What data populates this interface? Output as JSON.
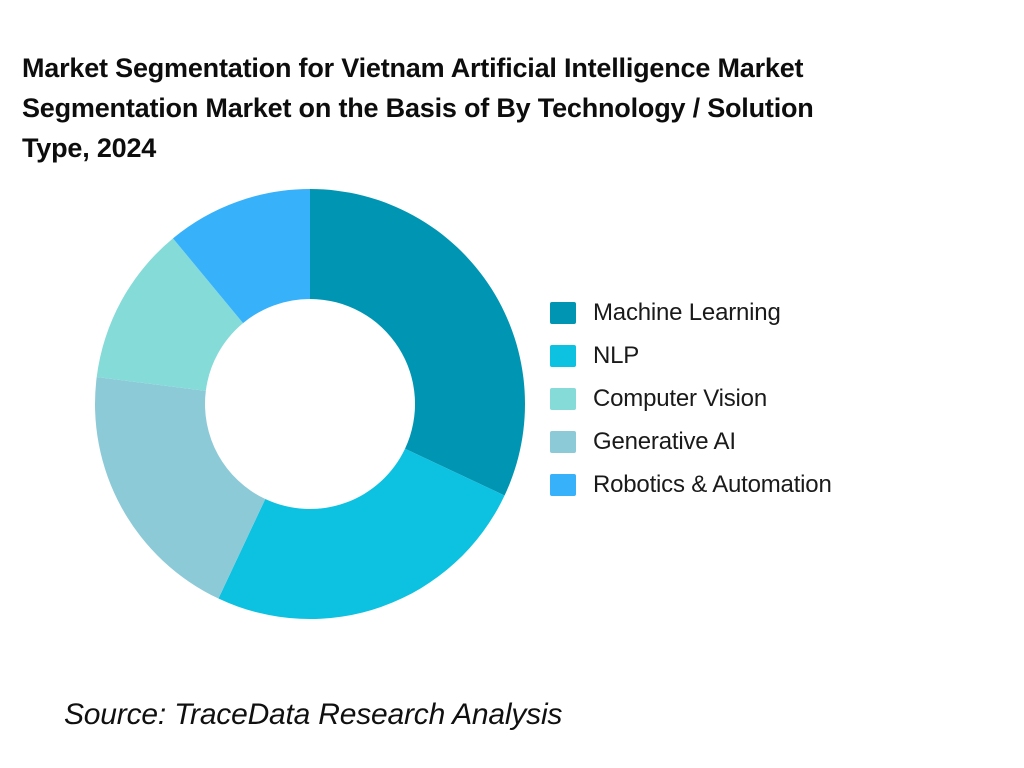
{
  "page": {
    "background_color": "#ffffff"
  },
  "chart": {
    "title_lines": [
      "Market Segmentation for Vietnam Artificial Intelligence Market",
      "Segmentation Market on the Basis of By Technology / Solution",
      "Type, 2024"
    ],
    "legend_items": [
      {
        "label": "Machine Learning",
        "color": "#0096B3"
      },
      {
        "label": "NLP",
        "color": "#0DC1E1"
      },
      {
        "label": "Computer Vision",
        "color": "#85DBD8"
      },
      {
        "label": "Generative AI",
        "color": "#8CCAD8"
      },
      {
        "label": "Robotics & Automation",
        "color": "#38B1FB"
      }
    ],
    "source_note": "Source: TraceData Research Analysis"
  },
  "chart_data": {
    "type": "pie",
    "subtype": "donut",
    "title": "Market Segmentation for Vietnam Artificial Intelligence Market Segmentation Market on the Basis of By Technology / Solution Type, 2024",
    "categories": [
      "Machine Learning",
      "NLP",
      "Computer Vision",
      "Generative AI",
      "Robotics & Automation"
    ],
    "values_pct_estimated": [
      32,
      25,
      12,
      20,
      11
    ],
    "series_colors": [
      "#0096B3",
      "#0DC1E1",
      "#85DBD8",
      "#8CCAD8",
      "#38B1FB"
    ],
    "segments_clockwise_from_top": [
      {
        "label": "Machine Learning",
        "value_pct": 32,
        "color": "#0096B3"
      },
      {
        "label": "NLP",
        "value_pct": 25,
        "color": "#0DC1E1"
      },
      {
        "label": "Generative AI",
        "value_pct": 20,
        "color": "#8CCAD8"
      },
      {
        "label": "Computer Vision",
        "value_pct": 12,
        "color": "#85DBD8"
      },
      {
        "label": "Robotics & Automation",
        "value_pct": 11,
        "color": "#38B1FB"
      }
    ],
    "start_angle_deg_from_top": 0,
    "direction": "clockwise",
    "inner_radius_ratio": 0.49,
    "legend_position": "right",
    "data_labels_shown": false,
    "source": "Source: TraceData Research Analysis"
  }
}
